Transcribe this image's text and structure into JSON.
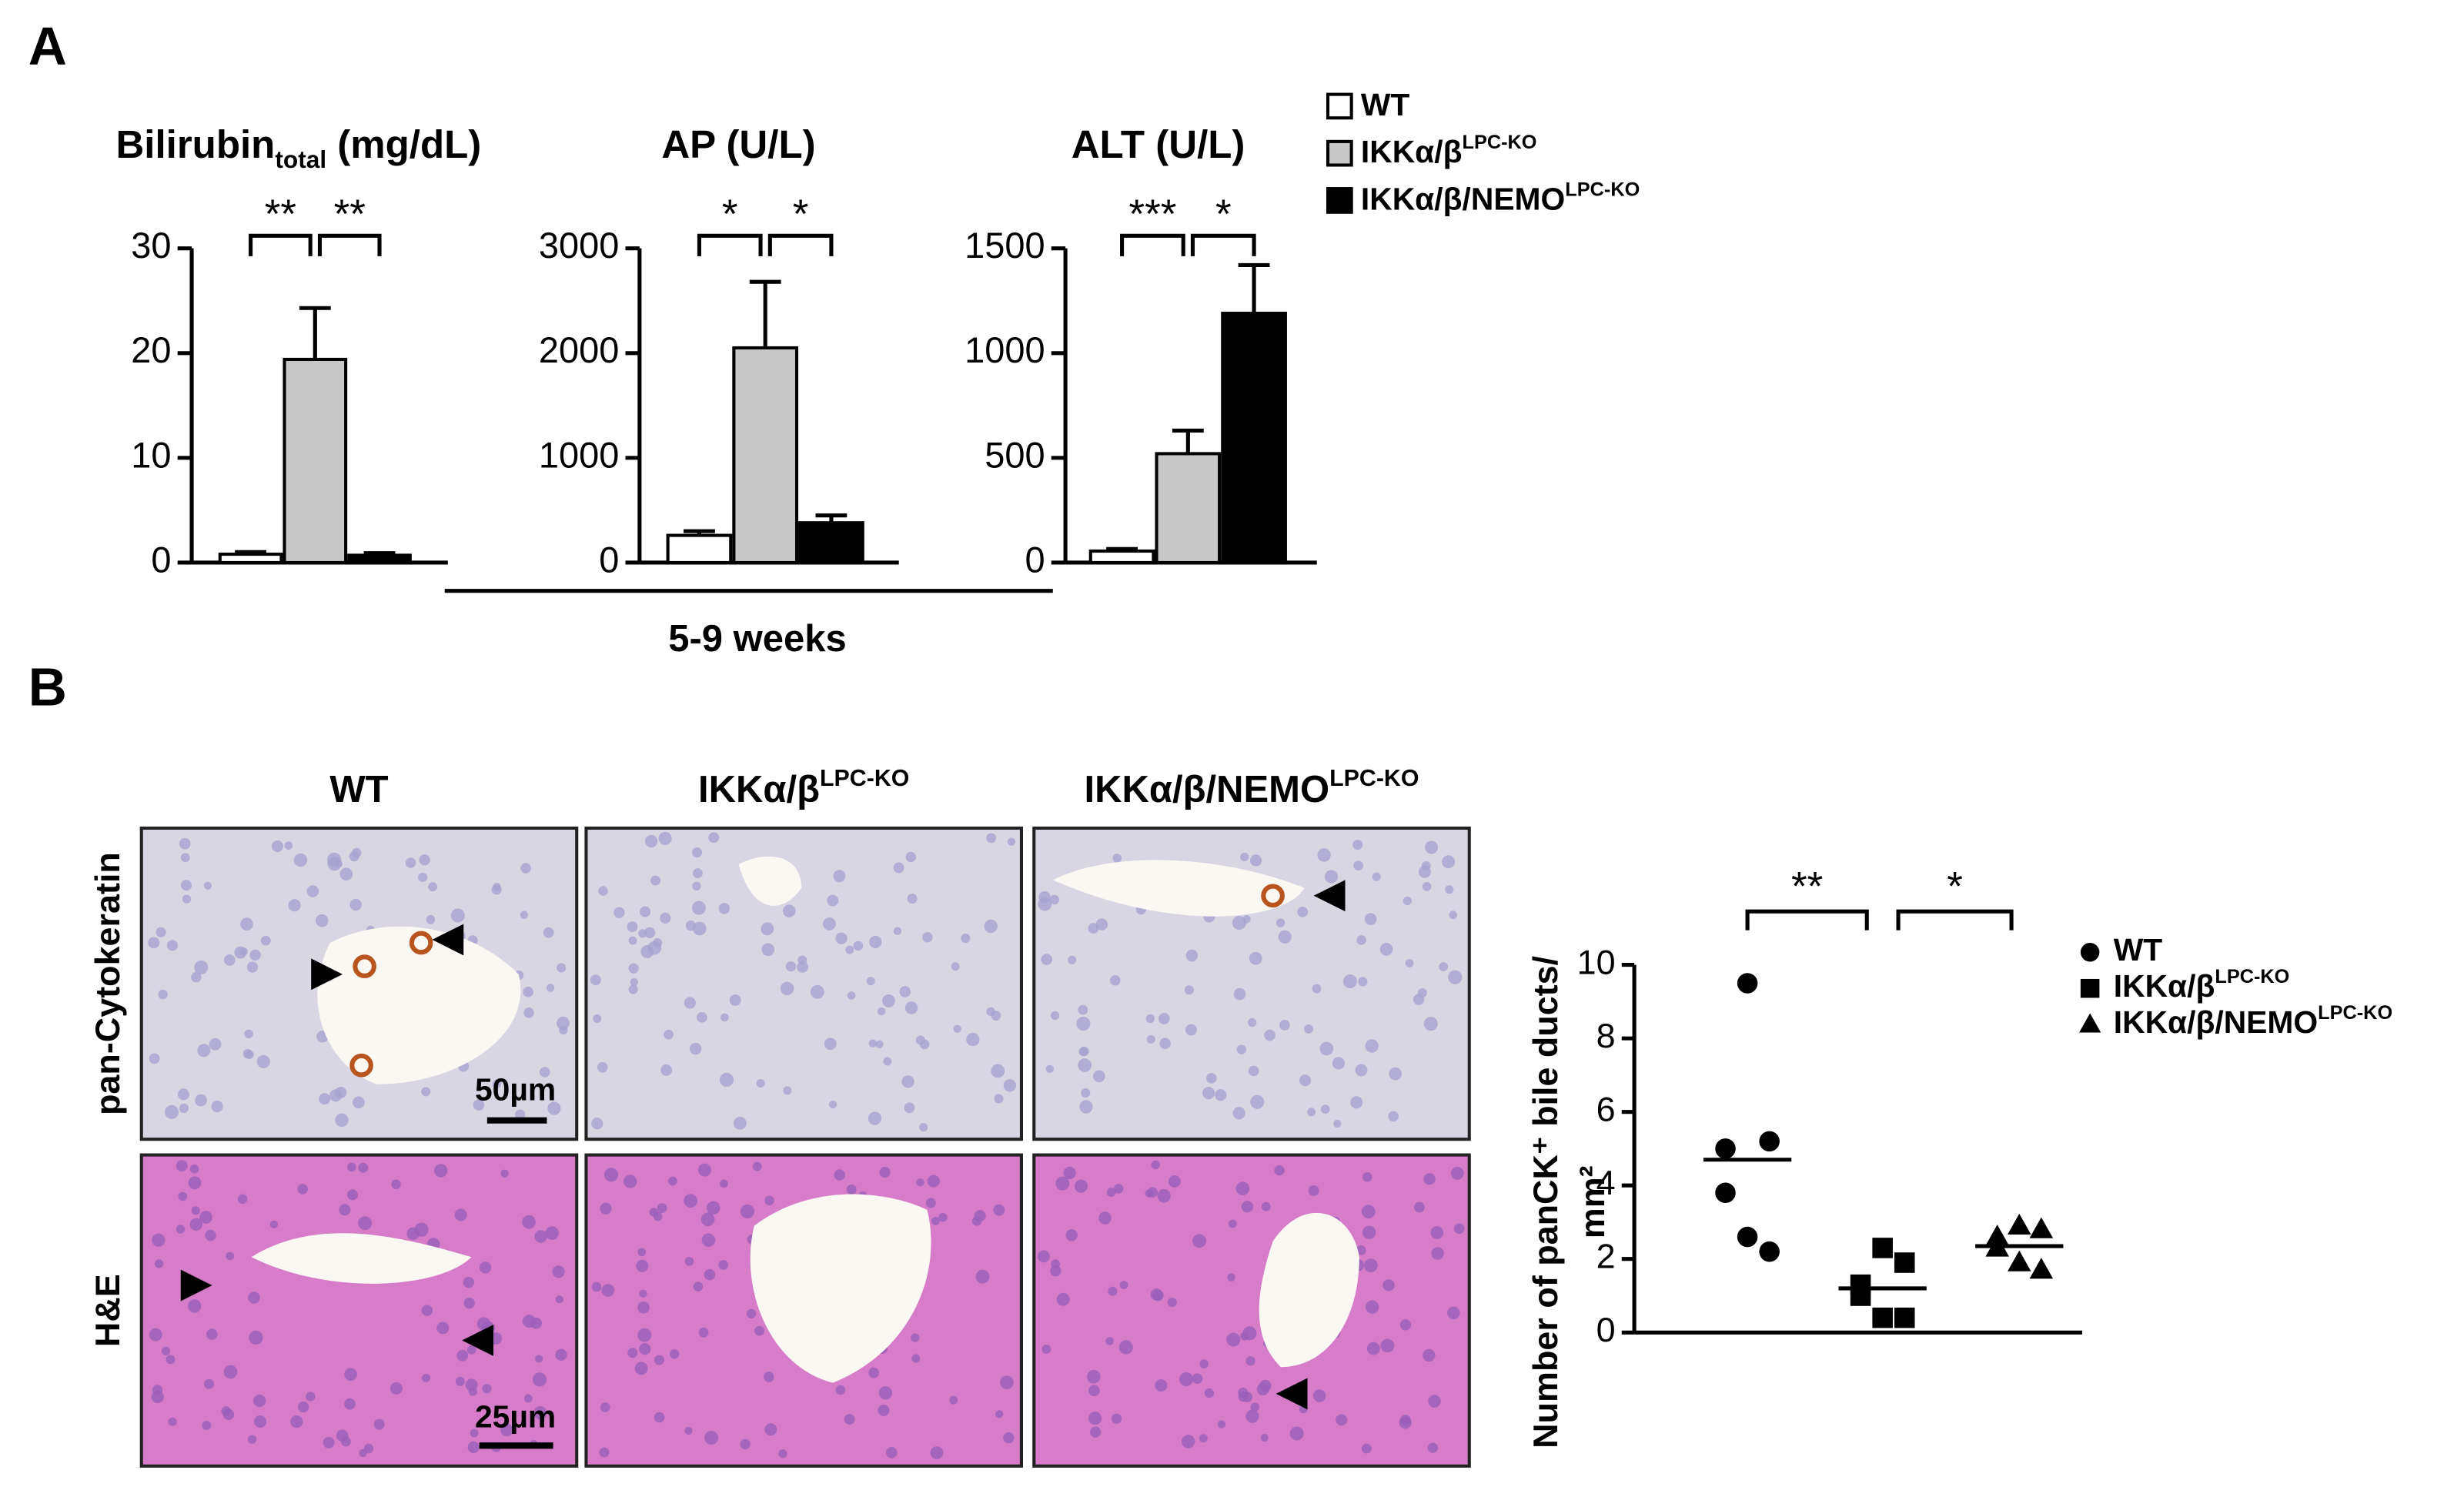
{
  "panels": [
    "A",
    "B"
  ],
  "groups": [
    {
      "name": "WT",
      "color": "#ffffff"
    },
    {
      "name": "IKKα/β",
      "sup": "LPC-KO",
      "color": "#c8c8c8"
    },
    {
      "name": "IKKα/β/NEMO",
      "sup": "LPC-KO",
      "color": "#000000"
    }
  ],
  "period": "5-9 weeks",
  "chart_data": [
    {
      "type": "bar",
      "title": "Bilirubin",
      "title_sub": "total",
      "title_end": " (mg/dL)",
      "categories": [
        null,
        null,
        null
      ],
      "values": [
        0.8,
        19.4,
        0.7
      ],
      "errors": [
        0.2,
        4.9,
        0.2
      ],
      "colors": [
        "#ffffff",
        "#c8c8c8",
        "#000000"
      ],
      "ylim": [
        0,
        30
      ],
      "yticks": [
        0,
        10,
        20,
        30
      ],
      "significance": [
        "**",
        "**"
      ]
    },
    {
      "type": "bar",
      "title": "AP (U/L)",
      "categories": [
        null,
        null,
        null
      ],
      "values": [
        260,
        2050,
        380
      ],
      "errors": [
        40,
        630,
        70
      ],
      "colors": [
        "#ffffff",
        "#c8c8c8",
        "#000000"
      ],
      "ylim": [
        0,
        3000
      ],
      "yticks": [
        0,
        1000,
        2000,
        3000
      ],
      "significance": [
        "*",
        "*"
      ]
    },
    {
      "type": "bar",
      "title": "ALT (U/L)",
      "categories": [
        null,
        null,
        null
      ],
      "values": [
        55,
        520,
        1190
      ],
      "errors": [
        10,
        110,
        230
      ],
      "colors": [
        "#ffffff",
        "#c8c8c8",
        "#000000"
      ],
      "ylim": [
        0,
        1500
      ],
      "yticks": [
        0,
        500,
        1000,
        1500
      ],
      "significance": [
        "***",
        "*"
      ]
    },
    {
      "type": "strip",
      "y_label": [
        "Number of  panCK⁺ bile ducts/",
        "mm²"
      ],
      "ylim": [
        0,
        10
      ],
      "yticks": [
        0,
        2,
        4,
        6,
        8,
        10
      ],
      "significance": [
        "**",
        "*"
      ],
      "series": [
        {
          "name": "WT",
          "marker": "circle",
          "color": "#000000",
          "values": [
            9.5,
            5.2,
            5.0,
            3.8,
            2.6,
            2.2
          ],
          "mean": 4.7
        },
        {
          "name": "IKKα/β",
          "sup": "LPC-KO",
          "marker": "square",
          "color": "#000000",
          "values": [
            2.3,
            1.9,
            1.3,
            1.0,
            0.4,
            0.4
          ],
          "mean": 1.2
        },
        {
          "name": "IKKα/β/NEMO",
          "sup": "LPC-KO",
          "marker": "triangle",
          "color": "#000000",
          "values": [
            2.9,
            2.8,
            2.6,
            2.3,
            1.9,
            1.7
          ],
          "mean": 2.35
        }
      ]
    }
  ],
  "histology": {
    "columns": [
      {
        "name": "WT"
      },
      {
        "name": "IKKα/β",
        "sup": "LPC-KO"
      },
      {
        "name": "IKKα/β/NEMO",
        "sup": "LPC-KO"
      }
    ],
    "rows": [
      "pan-Cytokeratin",
      "H&E"
    ],
    "scale_bars": [
      "50µm",
      "25µm"
    ]
  }
}
